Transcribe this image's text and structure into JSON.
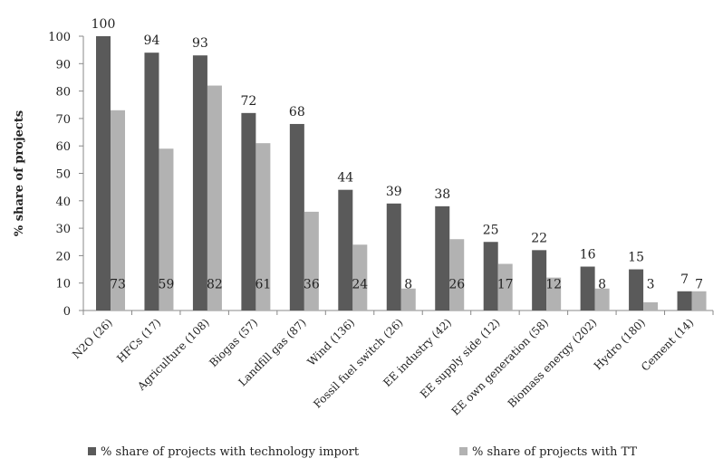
{
  "chart_data": {
    "type": "bar",
    "ylabel": "% share of projects",
    "ylim": [
      0,
      100
    ],
    "ytick_step": 10,
    "grid": false,
    "legend_position": "bottom",
    "categories": [
      "N2O (26)",
      "HFCs (17)",
      "Agriculture (108)",
      "Biogas (57)",
      "Landfill gas (87)",
      "Wind (136)",
      "Fossil fuel switch (26)",
      "EE industry (42)",
      "EE supply side (12)",
      "EE own generation (58)",
      "Biomass energy (202)",
      "Hydro (180)",
      "Cement (14)"
    ],
    "series": [
      {
        "name": "% share of projects  with technology import",
        "color": "#5a5a5a",
        "values": [
          100,
          94,
          93,
          72,
          68,
          44,
          39,
          38,
          25,
          22,
          16,
          15,
          7
        ]
      },
      {
        "name": "% share of projects with TT",
        "color": "#b2b2b2",
        "values": [
          73,
          59,
          82,
          61,
          36,
          24,
          8,
          26,
          17,
          12,
          8,
          3,
          7
        ]
      }
    ]
  }
}
